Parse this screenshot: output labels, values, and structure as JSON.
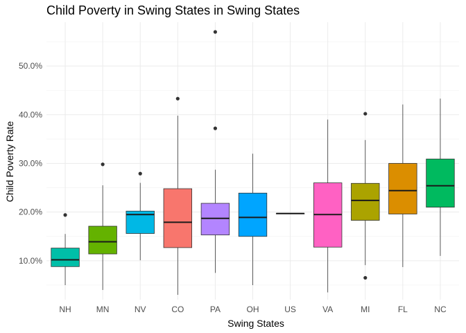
{
  "chart_data": {
    "type": "boxplot",
    "title": "Child Poverty in Swing States in Swing States",
    "xlabel": "Swing States",
    "ylabel": "Child Poverty Rate",
    "ylim": [
      0.02,
      0.59
    ],
    "y_ticks": [
      0.1,
      0.2,
      0.3,
      0.4,
      0.5
    ],
    "y_tick_labels": [
      "10.0%",
      "20.0%",
      "30.0%",
      "40.0%",
      "50.0%"
    ],
    "grid": true,
    "legend": "none",
    "categories": [
      "NH",
      "MN",
      "NV",
      "CO",
      "PA",
      "OH",
      "US",
      "VA",
      "MI",
      "FL",
      "NC"
    ],
    "boxes": [
      {
        "category": "NH",
        "min": 0.05,
        "q1": 0.088,
        "median": 0.102,
        "q3": 0.126,
        "max": 0.155,
        "outliers": [
          0.194
        ],
        "color": "#00BFA8"
      },
      {
        "category": "MN",
        "min": 0.04,
        "q1": 0.114,
        "median": 0.139,
        "q3": 0.171,
        "max": 0.255,
        "outliers": [
          0.298
        ],
        "color": "#64B200"
      },
      {
        "category": "NV",
        "min": 0.101,
        "q1": 0.156,
        "median": 0.195,
        "q3": 0.202,
        "max": 0.26,
        "outliers": [
          0.279
        ],
        "color": "#00B8E5"
      },
      {
        "category": "CO",
        "min": 0.03,
        "q1": 0.127,
        "median": 0.179,
        "q3": 0.248,
        "max": 0.398,
        "outliers": [
          0.433
        ],
        "color": "#F8766D"
      },
      {
        "category": "PA",
        "min": 0.075,
        "q1": 0.153,
        "median": 0.187,
        "q3": 0.218,
        "max": 0.287,
        "outliers": [
          0.372,
          0.57
        ],
        "color": "#B385FF"
      },
      {
        "category": "OH",
        "min": 0.05,
        "q1": 0.15,
        "median": 0.189,
        "q3": 0.239,
        "max": 0.32,
        "outliers": [],
        "color": "#00A5FF"
      },
      {
        "category": "US",
        "min": 0.197,
        "q1": 0.197,
        "median": 0.197,
        "q3": 0.197,
        "max": 0.197,
        "outliers": [],
        "color": "#E7861B"
      },
      {
        "category": "VA",
        "min": 0.035,
        "q1": 0.128,
        "median": 0.195,
        "q3": 0.26,
        "max": 0.39,
        "outliers": [],
        "color": "#FF61C3"
      },
      {
        "category": "MI",
        "min": 0.091,
        "q1": 0.183,
        "median": 0.224,
        "q3": 0.259,
        "max": 0.348,
        "outliers": [
          0.065,
          0.402
        ],
        "color": "#ABA300"
      },
      {
        "category": "FL",
        "min": 0.087,
        "q1": 0.196,
        "median": 0.244,
        "q3": 0.3,
        "max": 0.421,
        "outliers": [],
        "color": "#DB8E00"
      },
      {
        "category": "NC",
        "min": 0.11,
        "q1": 0.21,
        "median": 0.254,
        "q3": 0.309,
        "max": 0.433,
        "outliers": [],
        "color": "#00BA5F"
      }
    ]
  }
}
